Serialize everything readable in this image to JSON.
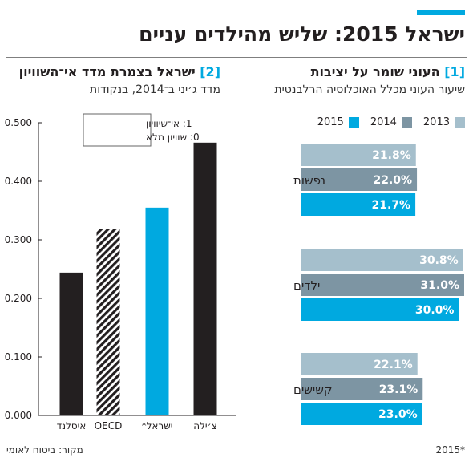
{
  "title": "ישראל 2015: שליש מהילדים עניים",
  "colors": {
    "accent": "#00a9e0",
    "y2013": "#a5bfcc",
    "y2014": "#7d95a3",
    "y2015": "#00a9e0",
    "dark": "#231f20"
  },
  "panels": {
    "left": {
      "number": "[2]",
      "title": "ישראל בצמרת מדד אי־השוויון",
      "subtitle": "מדד ג׳יני ב־2014, בנקודות",
      "note": [
        "1: אי־שיוויון",
        "0: שוויון מלא"
      ]
    },
    "right": {
      "number": "[1]",
      "title": "העוני שומר על יציבות",
      "subtitle": "שיעור העוני מכלל האוכלוסיה הרלבנטית"
    }
  },
  "chart_data": [
    {
      "type": "bar",
      "orientation": "vertical",
      "title": "ישראל בצמרת מדד אי־השוויון",
      "subtitle": "מדד ג׳יני ב־2014, בנקודות",
      "categories": [
        "איסלנד",
        "OECD",
        "ישראל*",
        "צ׳ילה"
      ],
      "values": [
        0.244,
        0.318,
        0.355,
        0.466
      ],
      "ylim": [
        0,
        0.5
      ],
      "yticks": [
        0,
        0.1,
        0.2,
        0.3,
        0.4,
        0.5
      ],
      "ytick_labels": [
        "0.000",
        "0.100",
        "0.200",
        "0.300",
        "0.400",
        "0.500"
      ],
      "grid": false,
      "bar_styles": [
        "dark",
        "hatched",
        "accent",
        "dark"
      ]
    },
    {
      "type": "bar",
      "orientation": "horizontal",
      "title": "העוני שומר על יציבות",
      "subtitle": "שיעור העוני מכלל האוכלוסיה הרלבנטית",
      "categories": [
        "נפשות",
        "ילדים",
        "קשישים"
      ],
      "series": [
        {
          "name": "2013",
          "values": [
            21.8,
            30.8,
            22.1
          ],
          "labels": [
            "21.8%",
            "30.8%",
            "22.1%"
          ]
        },
        {
          "name": "2014",
          "values": [
            22.0,
            31.0,
            23.1
          ],
          "labels": [
            "22.0%",
            "31.0%",
            "23.1%"
          ]
        },
        {
          "name": "2015",
          "values": [
            21.7,
            30.0,
            23.0
          ],
          "labels": [
            "21.7%",
            "30.0%",
            "23.0%"
          ]
        }
      ],
      "xlim": [
        0,
        31
      ],
      "legend_position": "top",
      "grid": false
    }
  ],
  "footer": {
    "source": "מקור: ביטוח לאומי",
    "footnote": "2015*"
  }
}
